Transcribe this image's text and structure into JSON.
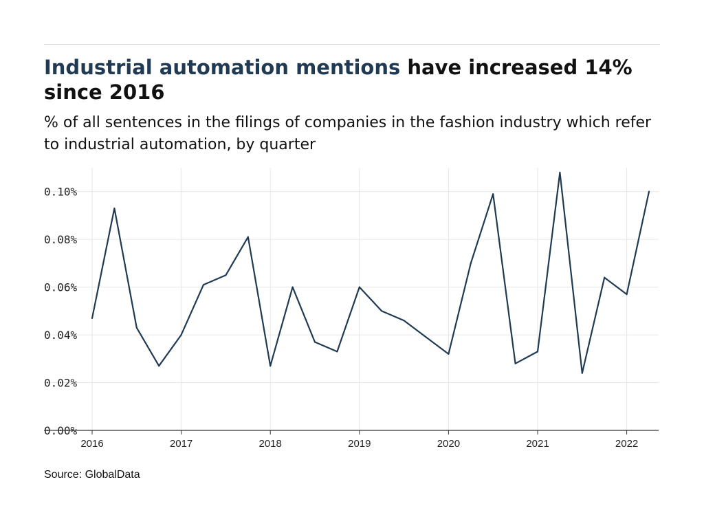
{
  "header": {
    "title_highlight": "Industrial automation mentions",
    "title_rest": " have increased 14% since 2016",
    "subtitle": "% of all sentences in the filings of companies in the fashion industry which refer to industrial automation, by quarter"
  },
  "footer": {
    "source": "Source: GlobalData"
  },
  "colors": {
    "line": "#1f3a52",
    "grid": "#e6e6e6",
    "axis": "#333333"
  },
  "chart_data": {
    "type": "line",
    "title": "Industrial automation mentions have increased 14% since 2016",
    "xlabel": "",
    "ylabel": "",
    "ylim": [
      0,
      0.11
    ],
    "yticks": [
      0,
      0.02,
      0.04,
      0.06,
      0.08,
      0.1
    ],
    "ytick_labels": [
      "0.00%",
      "0.02%",
      "0.04%",
      "0.06%",
      "0.08%",
      "0.10%"
    ],
    "xlim": [
      2016,
      2022.25
    ],
    "xticks": [
      2016,
      2017,
      2018,
      2019,
      2020,
      2021,
      2022
    ],
    "xtick_labels": [
      "2016",
      "2017",
      "2018",
      "2019",
      "2020",
      "2021",
      "2022"
    ],
    "grid": true,
    "x": [
      2016.0,
      2016.25,
      2016.5,
      2016.75,
      2017.0,
      2017.25,
      2017.5,
      2017.75,
      2018.0,
      2018.25,
      2018.5,
      2018.75,
      2019.0,
      2019.25,
      2019.5,
      2019.75,
      2020.0,
      2020.25,
      2020.5,
      2020.75,
      2021.0,
      2021.25,
      2021.5,
      2021.75,
      2022.0,
      2022.25
    ],
    "values": [
      0.047,
      0.093,
      0.043,
      0.027,
      0.04,
      0.061,
      0.065,
      0.081,
      0.027,
      0.06,
      0.037,
      0.033,
      0.06,
      0.05,
      0.046,
      0.039,
      0.032,
      0.07,
      0.099,
      0.028,
      0.033,
      0.108,
      0.024,
      0.064,
      0.057,
      0.1
    ]
  }
}
